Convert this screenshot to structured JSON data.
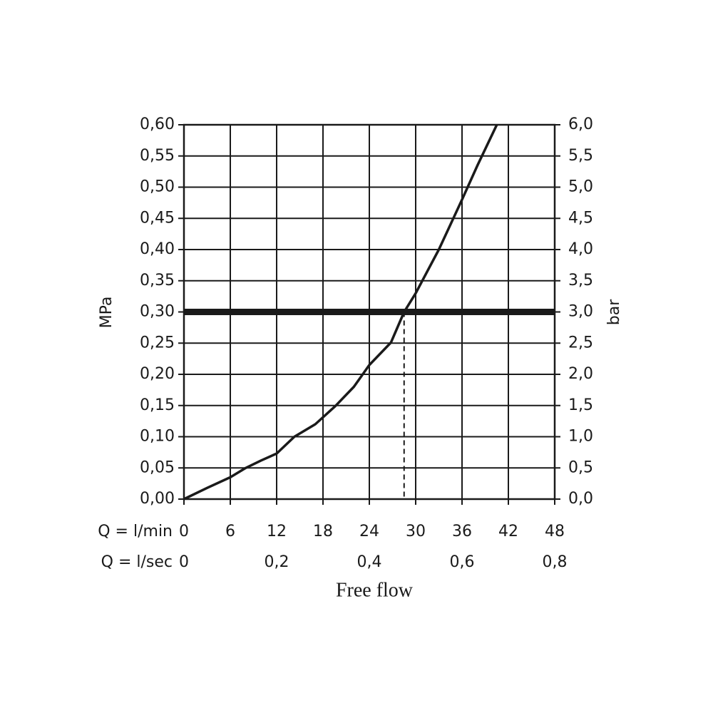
{
  "chart_data": {
    "type": "line",
    "y_label": "MPa",
    "y2_label": "bar",
    "x_label": "Q = l/min",
    "x2_label": "Q = l/sec",
    "title": "Free flow",
    "x": [
      0,
      3,
      6,
      8,
      10,
      12,
      14.3,
      17,
      19.6,
      22,
      24,
      26.8,
      28.5,
      30,
      33,
      36,
      38,
      40.5
    ],
    "values": [
      0,
      0.018,
      0.035,
      0.05,
      0.062,
      0.073,
      0.1,
      0.12,
      0.149,
      0.18,
      0.215,
      0.251,
      0.3,
      0.33,
      0.4,
      0.48,
      0.535,
      0.6
    ],
    "color": "#1a1a1a",
    "xlim": [
      0,
      48
    ],
    "xticks": [
      0,
      6,
      12,
      18,
      24,
      30,
      36,
      42,
      48
    ],
    "x2lim": [
      0,
      0.8
    ],
    "x2ticks": [
      0,
      {
        "value": 0.2,
        "label": "0,2"
      },
      {
        "value": 0.4,
        "label": "0,4"
      },
      {
        "value": 0.6,
        "label": "0,6"
      },
      {
        "value": 0.8,
        "label": "0,8"
      }
    ],
    "ylim": [
      0,
      0.6
    ],
    "yticks": [
      {
        "value": 0,
        "label": "0,00"
      },
      {
        "value": 0.05,
        "label": "0,05"
      },
      {
        "value": 0.1,
        "label": "0,10"
      },
      {
        "value": 0.15,
        "label": "0,15"
      },
      {
        "value": 0.2,
        "label": "0,20"
      },
      {
        "value": 0.25,
        "label": "0,25"
      },
      {
        "value": 0.3,
        "label": "0,30"
      },
      {
        "value": 0.35,
        "label": "0,35"
      },
      {
        "value": 0.4,
        "label": "0,40"
      },
      {
        "value": 0.45,
        "label": "0,45"
      },
      {
        "value": 0.5,
        "label": "0,50"
      },
      {
        "value": 0.55,
        "label": "0,55"
      },
      {
        "value": 0.6,
        "label": "0,60"
      }
    ],
    "y2lim": [
      0,
      6
    ],
    "y2ticks": [
      {
        "value": 0,
        "label": "0,0"
      },
      {
        "value": 0.5,
        "label": "0,5"
      },
      {
        "value": 1,
        "label": "1,0"
      },
      {
        "value": 1.5,
        "label": "1,5"
      },
      {
        "value": 2,
        "label": "2,0"
      },
      {
        "value": 2.5,
        "label": "2,5"
      },
      {
        "value": 3,
        "label": "3,0"
      },
      {
        "value": 3.5,
        "label": "3,5"
      },
      {
        "value": 4,
        "label": "4,0"
      },
      {
        "value": 4.5,
        "label": "4,5"
      },
      {
        "value": 5,
        "label": "5,0"
      },
      {
        "value": 5.5,
        "label": "5,5"
      },
      {
        "value": 6,
        "label": "6,0"
      }
    ],
    "reference_y": 0.3,
    "reference_x": 28.5,
    "grid": true
  }
}
